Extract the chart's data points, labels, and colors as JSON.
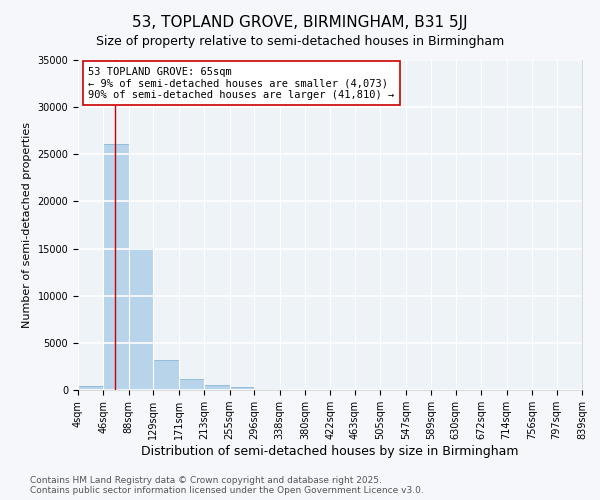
{
  "title": "53, TOPLAND GROVE, BIRMINGHAM, B31 5JJ",
  "subtitle": "Size of property relative to semi-detached houses in Birmingham",
  "xlabel": "Distribution of semi-detached houses by size in Birmingham",
  "ylabel": "Number of semi-detached properties",
  "bar_color": "#b8d4ea",
  "bar_edge_color": "#7aaecf",
  "vline_color": "#cc0000",
  "vline_x": 65,
  "annotation_text": "53 TOPLAND GROVE: 65sqm\n← 9% of semi-detached houses are smaller (4,073)\n90% of semi-detached houses are larger (41,810) →",
  "annotation_box_color": "white",
  "annotation_box_edgecolor": "#cc0000",
  "bins": [
    4,
    46,
    88,
    129,
    171,
    213,
    255,
    296,
    338,
    380,
    422,
    463,
    505,
    547,
    589,
    630,
    672,
    714,
    756,
    797,
    839
  ],
  "counts": [
    400,
    26100,
    15100,
    3200,
    1200,
    480,
    280,
    150,
    0,
    0,
    0,
    0,
    0,
    0,
    0,
    0,
    0,
    0,
    0,
    0
  ],
  "ylim": [
    0,
    35000
  ],
  "yticks": [
    0,
    5000,
    10000,
    15000,
    20000,
    25000,
    30000,
    35000
  ],
  "background_color": "#eef3f8",
  "grid_color": "white",
  "fig_bg_color": "#f5f7fa",
  "footer": "Contains HM Land Registry data © Crown copyright and database right 2025.\nContains public sector information licensed under the Open Government Licence v3.0.",
  "title_fontsize": 11,
  "subtitle_fontsize": 9,
  "xlabel_fontsize": 9,
  "ylabel_fontsize": 8,
  "annotation_fontsize": 7.5,
  "tick_fontsize": 7,
  "footer_fontsize": 6.5
}
